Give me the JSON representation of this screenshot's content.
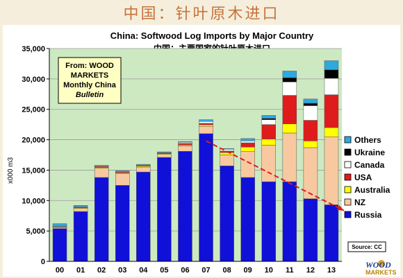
{
  "slide": {
    "title": "中国：针叶原木进口"
  },
  "colors": {
    "Others": "#2ea8de",
    "Ukraine": "#000000",
    "Canada": "#ffffff",
    "USA": "#e01b1b",
    "Australia": "#ffff00",
    "NZ": "#f8c9a0",
    "Russia": "#1010d8",
    "plot_bg": "#cde9c2",
    "trend": "#e01b1b"
  },
  "annotation": {
    "lines": [
      "From: WOOD",
      "MARKETS",
      "Monthly China",
      "Bulletin"
    ]
  },
  "source_label": "Source: CC",
  "logo": {
    "line1": "WOOD",
    "line2": "MARKETS"
  },
  "chart_data": {
    "type": "bar",
    "stacked": true,
    "title": "China: Softwood Log Imports by Major Country",
    "subtitle": "中国：主要国家的针叶原木进口",
    "xlabel": "",
    "ylabel": "x000 m3",
    "ylim": [
      0,
      35000
    ],
    "yticks": [
      0,
      5000,
      10000,
      15000,
      20000,
      25000,
      30000,
      35000
    ],
    "ytick_labels": [
      "0",
      "5,000",
      "10,000",
      "15,000",
      "20,000",
      "25,000",
      "30,000",
      "35,000"
    ],
    "categories": [
      "00",
      "01",
      "02",
      "03",
      "04",
      "05",
      "06",
      "07",
      "08",
      "09",
      "10",
      "11",
      "12",
      "13"
    ],
    "grid": true,
    "legend_position": "right",
    "legend_order": [
      "Others",
      "Ukraine",
      "Canada",
      "USA",
      "Australia",
      "NZ",
      "Russia"
    ],
    "series": [
      {
        "name": "Russia",
        "values": [
          5400,
          8200,
          13800,
          12500,
          14700,
          17100,
          18100,
          21000,
          15700,
          13800,
          13100,
          13100,
          10300,
          9300
        ]
      },
      {
        "name": "NZ",
        "values": [
          200,
          500,
          1500,
          1900,
          800,
          500,
          900,
          1200,
          1800,
          4300,
          6000,
          8000,
          8400,
          11200
        ]
      },
      {
        "name": "Australia",
        "values": [
          50,
          100,
          150,
          150,
          150,
          100,
          150,
          250,
          400,
          700,
          1000,
          1500,
          1100,
          1500
        ]
      },
      {
        "name": "USA",
        "values": [
          50,
          100,
          150,
          150,
          100,
          100,
          250,
          250,
          250,
          700,
          2400,
          4700,
          3400,
          5400
        ]
      },
      {
        "name": "Canada",
        "values": [
          100,
          100,
          100,
          100,
          100,
          100,
          200,
          300,
          300,
          300,
          800,
          2200,
          2400,
          2700
        ]
      },
      {
        "name": "Ukraine",
        "values": [
          0,
          0,
          0,
          0,
          0,
          0,
          0,
          0,
          0,
          0,
          200,
          700,
          400,
          1400
        ]
      },
      {
        "name": "Others",
        "values": [
          400,
          200,
          100,
          100,
          100,
          100,
          100,
          300,
          100,
          400,
          500,
          1100,
          700,
          1500
        ]
      }
    ],
    "trendline": {
      "from": {
        "x": "07",
        "y": 19800
      },
      "to": {
        "x": "13",
        "y": 8700
      }
    }
  }
}
